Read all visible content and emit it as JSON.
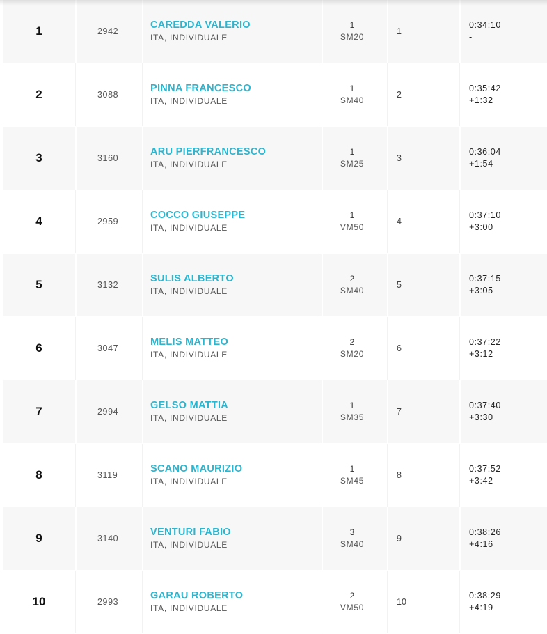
{
  "results": [
    {
      "position": "1",
      "bib": "2942",
      "name": "CAREDDA VALERIO",
      "info": "ITA, INDIVIDUALE",
      "cat_rank": "1",
      "category": "SM20",
      "gender_rank": "1",
      "time": "0:34:10",
      "gap": "-"
    },
    {
      "position": "2",
      "bib": "3088",
      "name": "PINNA FRANCESCO",
      "info": "ITA, INDIVIDUALE",
      "cat_rank": "1",
      "category": "SM40",
      "gender_rank": "2",
      "time": "0:35:42",
      "gap": "+1:32"
    },
    {
      "position": "3",
      "bib": "3160",
      "name": "ARU PIERFRANCESCO",
      "info": "ITA, INDIVIDUALE",
      "cat_rank": "1",
      "category": "SM25",
      "gender_rank": "3",
      "time": "0:36:04",
      "gap": "+1:54"
    },
    {
      "position": "4",
      "bib": "2959",
      "name": "COCCO GIUSEPPE",
      "info": "ITA, INDIVIDUALE",
      "cat_rank": "1",
      "category": "VM50",
      "gender_rank": "4",
      "time": "0:37:10",
      "gap": "+3:00"
    },
    {
      "position": "5",
      "bib": "3132",
      "name": "SULIS ALBERTO",
      "info": "ITA, INDIVIDUALE",
      "cat_rank": "2",
      "category": "SM40",
      "gender_rank": "5",
      "time": "0:37:15",
      "gap": "+3:05"
    },
    {
      "position": "6",
      "bib": "3047",
      "name": "MELIS MATTEO",
      "info": "ITA, INDIVIDUALE",
      "cat_rank": "2",
      "category": "SM20",
      "gender_rank": "6",
      "time": "0:37:22",
      "gap": "+3:12"
    },
    {
      "position": "7",
      "bib": "2994",
      "name": "GELSO MATTIA",
      "info": "ITA, INDIVIDUALE",
      "cat_rank": "1",
      "category": "SM35",
      "gender_rank": "7",
      "time": "0:37:40",
      "gap": "+3:30"
    },
    {
      "position": "8",
      "bib": "3119",
      "name": "SCANO MAURIZIO",
      "info": "ITA, INDIVIDUALE",
      "cat_rank": "1",
      "category": "SM45",
      "gender_rank": "8",
      "time": "0:37:52",
      "gap": "+3:42"
    },
    {
      "position": "9",
      "bib": "3140",
      "name": "VENTURI FABIO",
      "info": "ITA, INDIVIDUALE",
      "cat_rank": "3",
      "category": "SM40",
      "gender_rank": "9",
      "time": "0:38:26",
      "gap": "+4:16"
    },
    {
      "position": "10",
      "bib": "2993",
      "name": "GARAU ROBERTO",
      "info": "ITA, INDIVIDUALE",
      "cat_rank": "2",
      "category": "VM50",
      "gender_rank": "10",
      "time": "0:38:29",
      "gap": "+4:19"
    }
  ],
  "colors": {
    "athlete_link": "#2cb5cf",
    "row_alt_bg": "#f7f7f7"
  }
}
